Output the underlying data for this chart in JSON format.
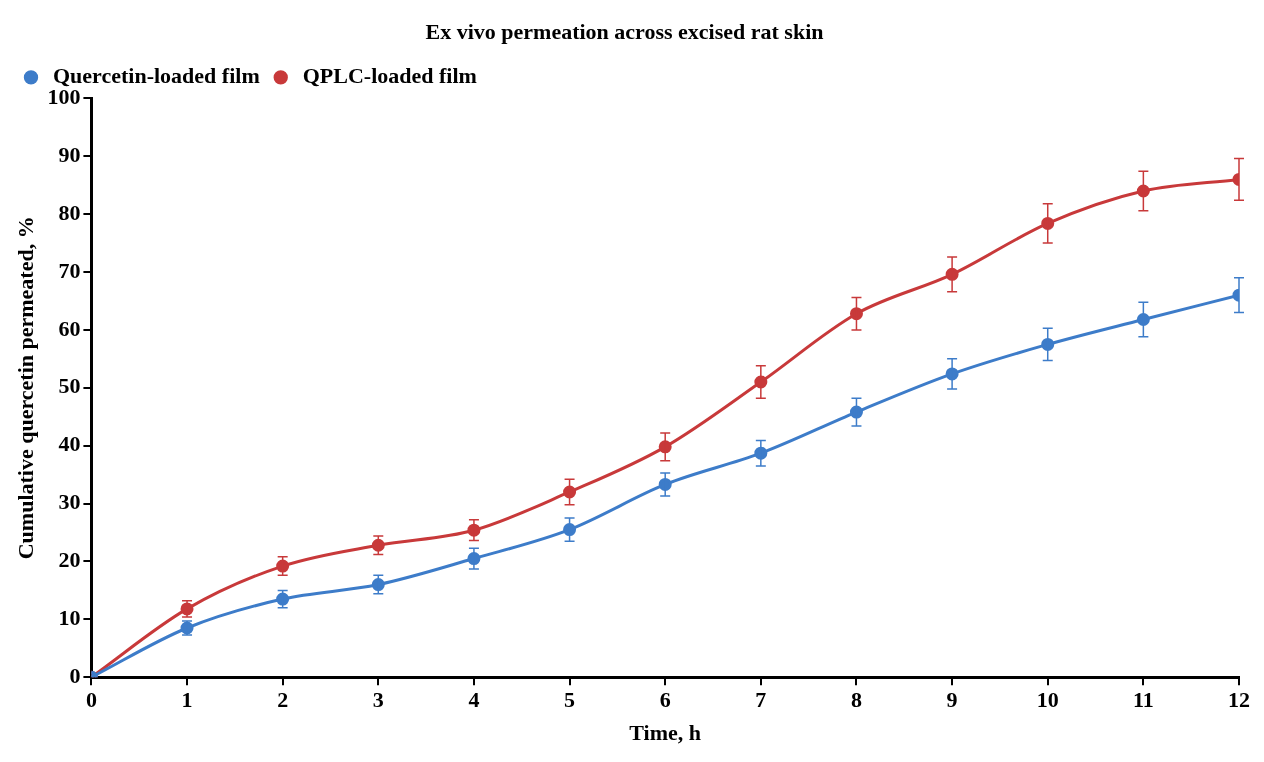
{
  "chart_data": {
    "type": "line",
    "title": "Ex vivo permeation across excised rat skin",
    "xlabel": "Time, h",
    "ylabel": "Cumulative quercetin permeated, %",
    "x": [
      0,
      1,
      2,
      3,
      4,
      5,
      6,
      7,
      8,
      9,
      10,
      11,
      12
    ],
    "series": [
      {
        "name": "Quercetin-loaded film",
        "color": "#3d7cc9",
        "values": [
          0,
          8.5,
          13.5,
          16,
          20.5,
          25.5,
          33.3,
          38.7,
          45.8,
          52.4,
          57.5,
          61.8,
          66
        ],
        "errors": [
          null,
          1.2,
          1.5,
          1.6,
          1.8,
          2,
          2,
          2.2,
          2.4,
          2.6,
          2.8,
          3,
          3
        ]
      },
      {
        "name": "QPLC-loaded film",
        "color": "#c8393a",
        "values": [
          0,
          11.8,
          19.2,
          22.8,
          25.4,
          32,
          39.8,
          51,
          62.8,
          69.6,
          78.4,
          84,
          86
        ],
        "errors": [
          null,
          1.4,
          1.6,
          1.6,
          1.8,
          2.2,
          2.4,
          2.8,
          2.8,
          3,
          3.4,
          3.4,
          3.6
        ]
      }
    ],
    "xlim": [
      0,
      12
    ],
    "xticks": [
      0,
      1,
      2,
      3,
      4,
      5,
      6,
      7,
      8,
      9,
      10,
      11,
      12
    ],
    "ylim": [
      0,
      100
    ],
    "yticks": [
      0,
      10,
      20,
      30,
      40,
      50,
      60,
      70,
      80,
      90,
      100
    ],
    "grid": false,
    "legend": "top left",
    "marker": "circle",
    "line_style": "solid"
  }
}
